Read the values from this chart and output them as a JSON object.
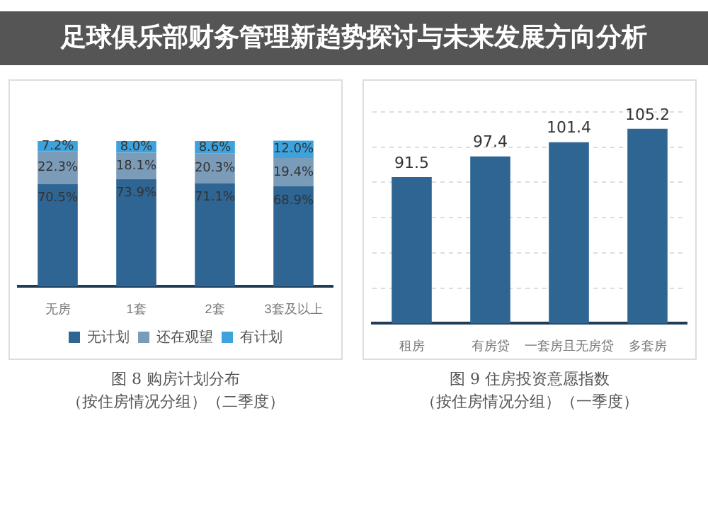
{
  "chart_data": [
    {
      "type": "bar",
      "title": "图 8 购房计划分布",
      "subtitle": "（按住房情况分组）（二季度）",
      "annotations": [
        "足球俱乐部财务管理新趋势探讨与未来发展方向分析"
      ],
      "categories": [
        "无房",
        "1套",
        "2套",
        "3套及以上"
      ],
      "stacked": true,
      "tick_labels": "x",
      "grid": false,
      "legend": "bottom",
      "series": [
        {
          "name": "无计划",
          "color": "#2e6593",
          "values": [
            70.5,
            73.9,
            71.1,
            68.9
          ],
          "value_labels": [
            "70.5%",
            "73.9%",
            "71.1%",
            "68.9%"
          ]
        },
        {
          "name": "还在观望",
          "color": "#7b9cb9",
          "values": [
            22.3,
            18.1,
            20.3,
            19.4
          ],
          "value_labels": [
            "22.3%",
            "18.1%",
            "20.3%",
            "19.4%"
          ]
        },
        {
          "name": "有计划",
          "color": "#3ea3dc",
          "values": [
            7.2,
            8.0,
            8.6,
            12.0
          ],
          "value_labels": [
            "7.2%",
            "8.0%",
            "8.6%",
            "12.0%"
          ]
        }
      ]
    },
    {
      "type": "bar",
      "title": "图 9 住房投资意愿指数",
      "subtitle": "（按住房情况分组）（一季度）",
      "categories": [
        "租房",
        "有房贷",
        "一套房且无房贷",
        "多套房"
      ],
      "color": "#2e6593",
      "values": [
        91.5,
        97.4,
        101.4,
        105.2
      ],
      "ylim": [
        50,
        110
      ],
      "yticks": [
        {
          "value": 50,
          "label": null
        },
        {
          "value": 60,
          "label": null
        },
        {
          "value": 70,
          "label": null
        },
        {
          "value": 80,
          "label": null
        },
        {
          "value": 90,
          "label": null
        },
        {
          "value": 100,
          "label": null
        },
        {
          "value": 110,
          "label": null
        }
      ],
      "tick_labels": "x",
      "grid": "y",
      "legend": false,
      "data_labels": true
    }
  ]
}
